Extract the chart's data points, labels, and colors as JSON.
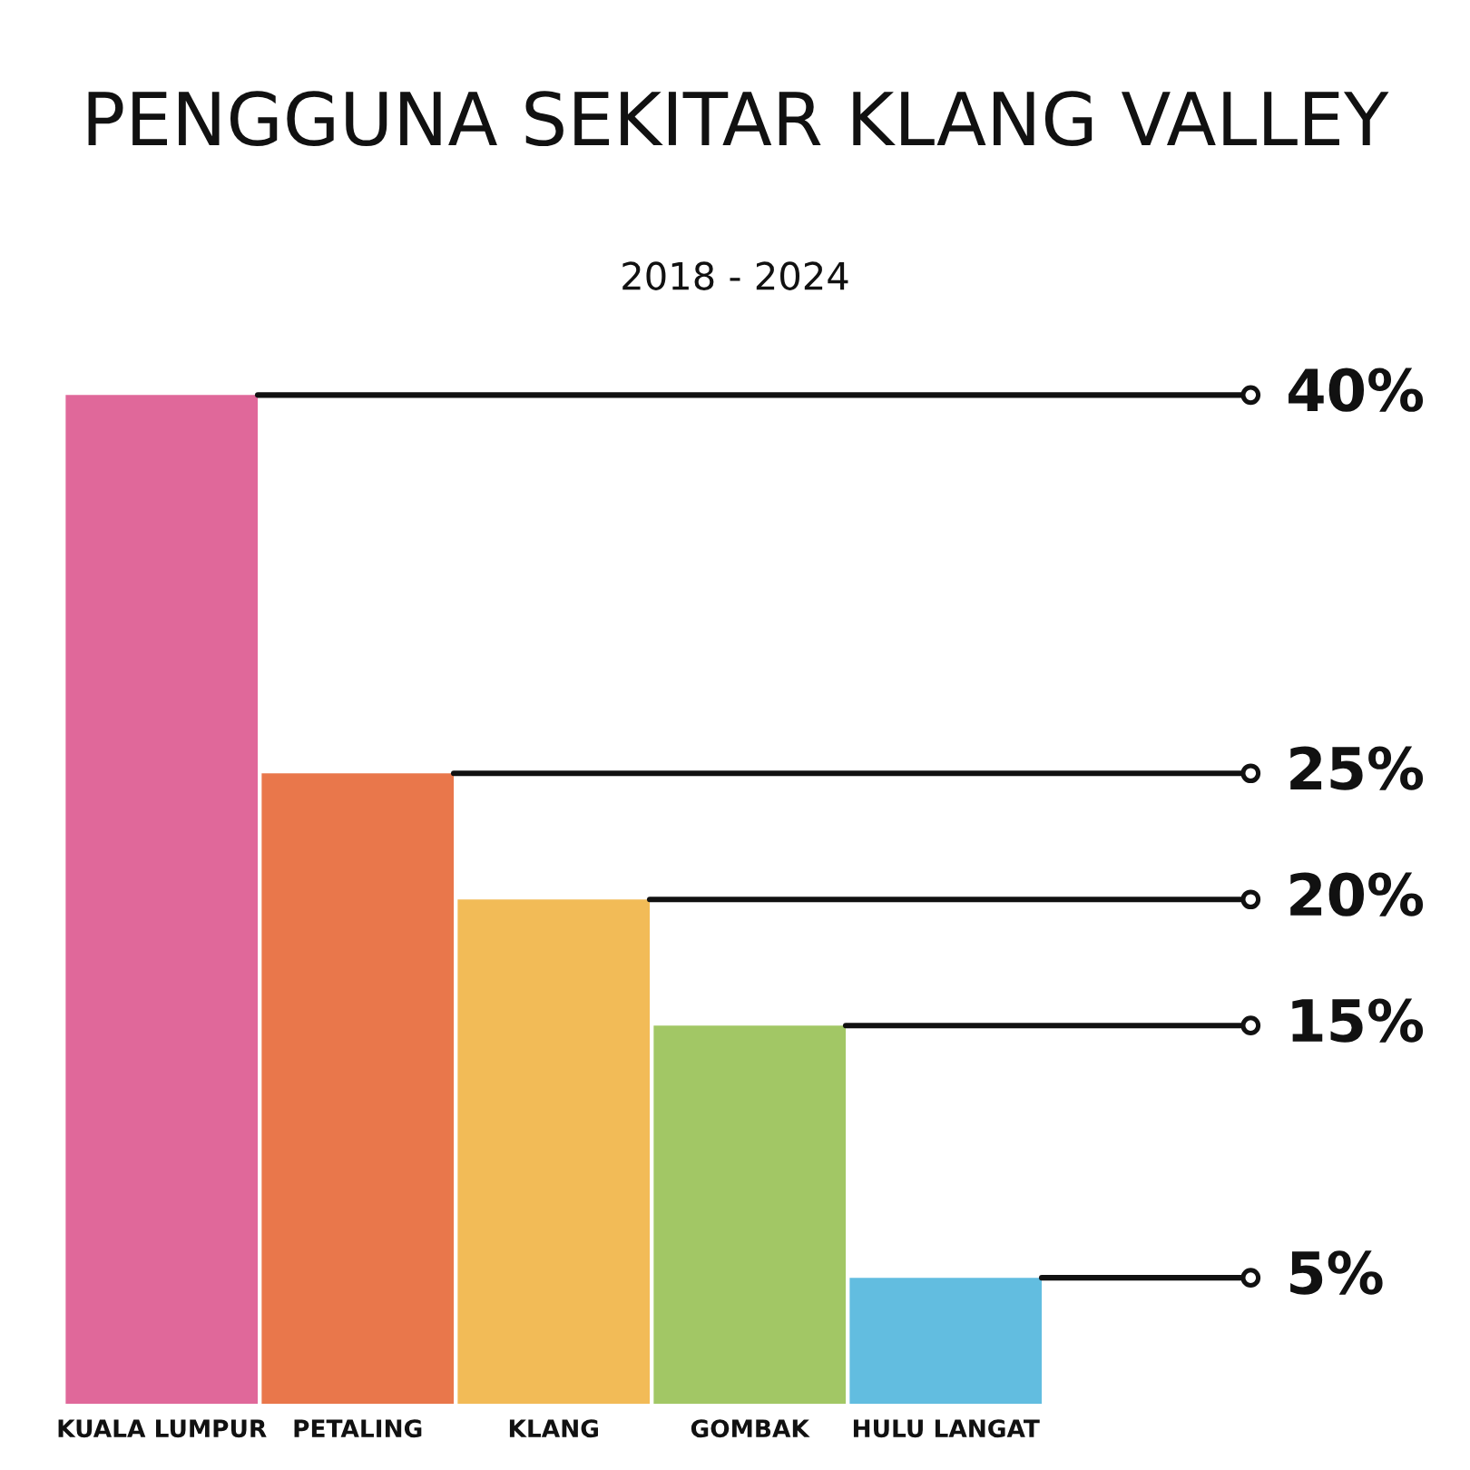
{
  "chart_data": {
    "type": "bar",
    "title": "PENGGUNA SEKITAR KLANG VALLEY",
    "subtitle": "2018 - 2024",
    "categories": [
      "KUALA LUMPUR",
      "PETALING",
      "KLANG",
      "GOMBAK",
      "HULU LANGAT"
    ],
    "values": [
      40,
      25,
      20,
      15,
      5
    ],
    "colors": [
      "#e0689a",
      "#e9774b",
      "#f2bb57",
      "#a2c765",
      "#62bde0"
    ],
    "value_labels": [
      "40%",
      "25%",
      "20%",
      "15%",
      "5%"
    ],
    "tick_labels": "x"
  }
}
